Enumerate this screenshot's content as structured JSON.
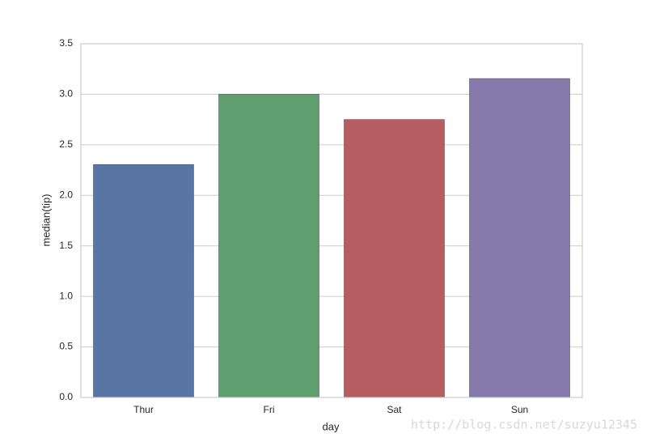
{
  "chart_data": {
    "type": "bar",
    "x_label": "day",
    "y_label": "median(tip)",
    "categories": [
      "Thur",
      "Fri",
      "Sat",
      "Sun"
    ],
    "values": [
      2.305,
      3.0,
      2.75,
      3.155
    ],
    "colors": [
      "#5875a4",
      "#5f9e6e",
      "#b55d60",
      "#857aab"
    ],
    "ylim": [
      0,
      3.5
    ],
    "yticks": [
      {
        "value": 0,
        "label": "0.0"
      },
      0.5,
      {
        "value": 1,
        "label": "1.0"
      },
      1.5,
      {
        "value": 2,
        "label": "2.0"
      },
      2.5,
      {
        "value": 3,
        "label": "3.0"
      },
      3.5
    ],
    "grid": true,
    "watermark": "http://blog.csdn.net/suzyu12345"
  }
}
